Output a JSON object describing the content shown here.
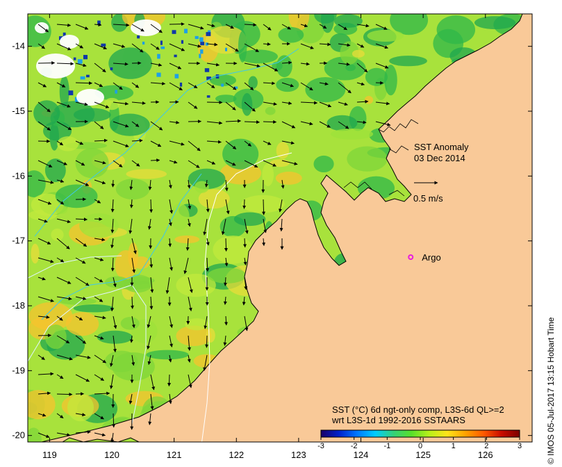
{
  "map": {
    "lon_range": [
      118.65,
      126.75
    ],
    "lat_range": [
      -20.1,
      -13.5
    ],
    "lon_ticks": [
      "119",
      "120",
      "121",
      "122",
      "123",
      "124",
      "125",
      "126"
    ],
    "lat_ticks": [
      "-14",
      "-15",
      "-16",
      "-17",
      "-18",
      "-19",
      "-20"
    ],
    "land_color": "#F9C998",
    "ocean_colors": [
      "#7FD63A",
      "#9DE23A",
      "#C2EA3C",
      "#E8DC3A",
      "#F7C32E",
      "#2FB74A",
      "#1FA74F"
    ]
  },
  "title": {
    "line1": "SST Anomaly",
    "line2": "03 Dec 2014"
  },
  "scale_arrow": {
    "label": "0.5 m/s"
  },
  "marker": {
    "label": "Argo",
    "lon": 124.8,
    "lat": -17.25,
    "color": "#E81BE0"
  },
  "colorbar": {
    "line1": "SST (°C) 6d ngt-only comp, L3S-6d QL>=2",
    "line2": "wrt L3S-1d 1992-2016 SSTAARS",
    "min": -3,
    "max": 3,
    "ticks": [
      "-3",
      "-2",
      "-1",
      "0",
      "1",
      "2",
      "3"
    ],
    "colors": [
      "#1a0066",
      "#0022cc",
      "#0077ff",
      "#00ccff",
      "#35d07a",
      "#57e02b",
      "#b8f01a",
      "#ffe31a",
      "#ffa200",
      "#ff5a00",
      "#c80a00",
      "#7a0000"
    ]
  },
  "credit": "© IMOS 05-Jul-2017 13:15 Hobart Time"
}
